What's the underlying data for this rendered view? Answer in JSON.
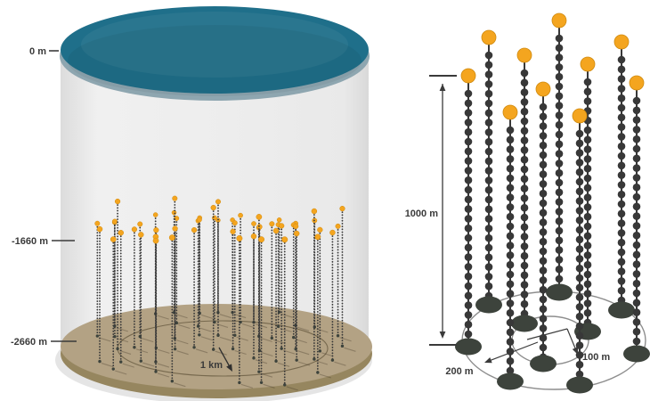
{
  "figure_type": "neutrino-telescope-detector-schematic",
  "left_panel": {
    "description": "sea-water-cylinder-with-string-array",
    "depth_marks": [
      {
        "label": "0 m"
      },
      {
        "label": "-1660 m"
      },
      {
        "label": "-2660 m"
      }
    ],
    "floor_scale_label": "1 km"
  },
  "right_panel": {
    "description": "single-cluster-of-10-strings",
    "string_count": 10,
    "string_height_label": "1000 m",
    "outer_circle_label": "200 m",
    "inner_circle_label": "100 m"
  },
  "colors": {
    "sea_surface": "#1f6f8a",
    "sea_rim": "#8ea6b0",
    "cylinder_body": "#ececec",
    "seafloor_top": "#b3a284",
    "seafloor_side": "#96865f",
    "buoy": "#f4a51f",
    "buoy_edge": "#cf8a10",
    "string": "#383838",
    "anchor": "#3d433c",
    "dimension": "#3a3a3a"
  }
}
